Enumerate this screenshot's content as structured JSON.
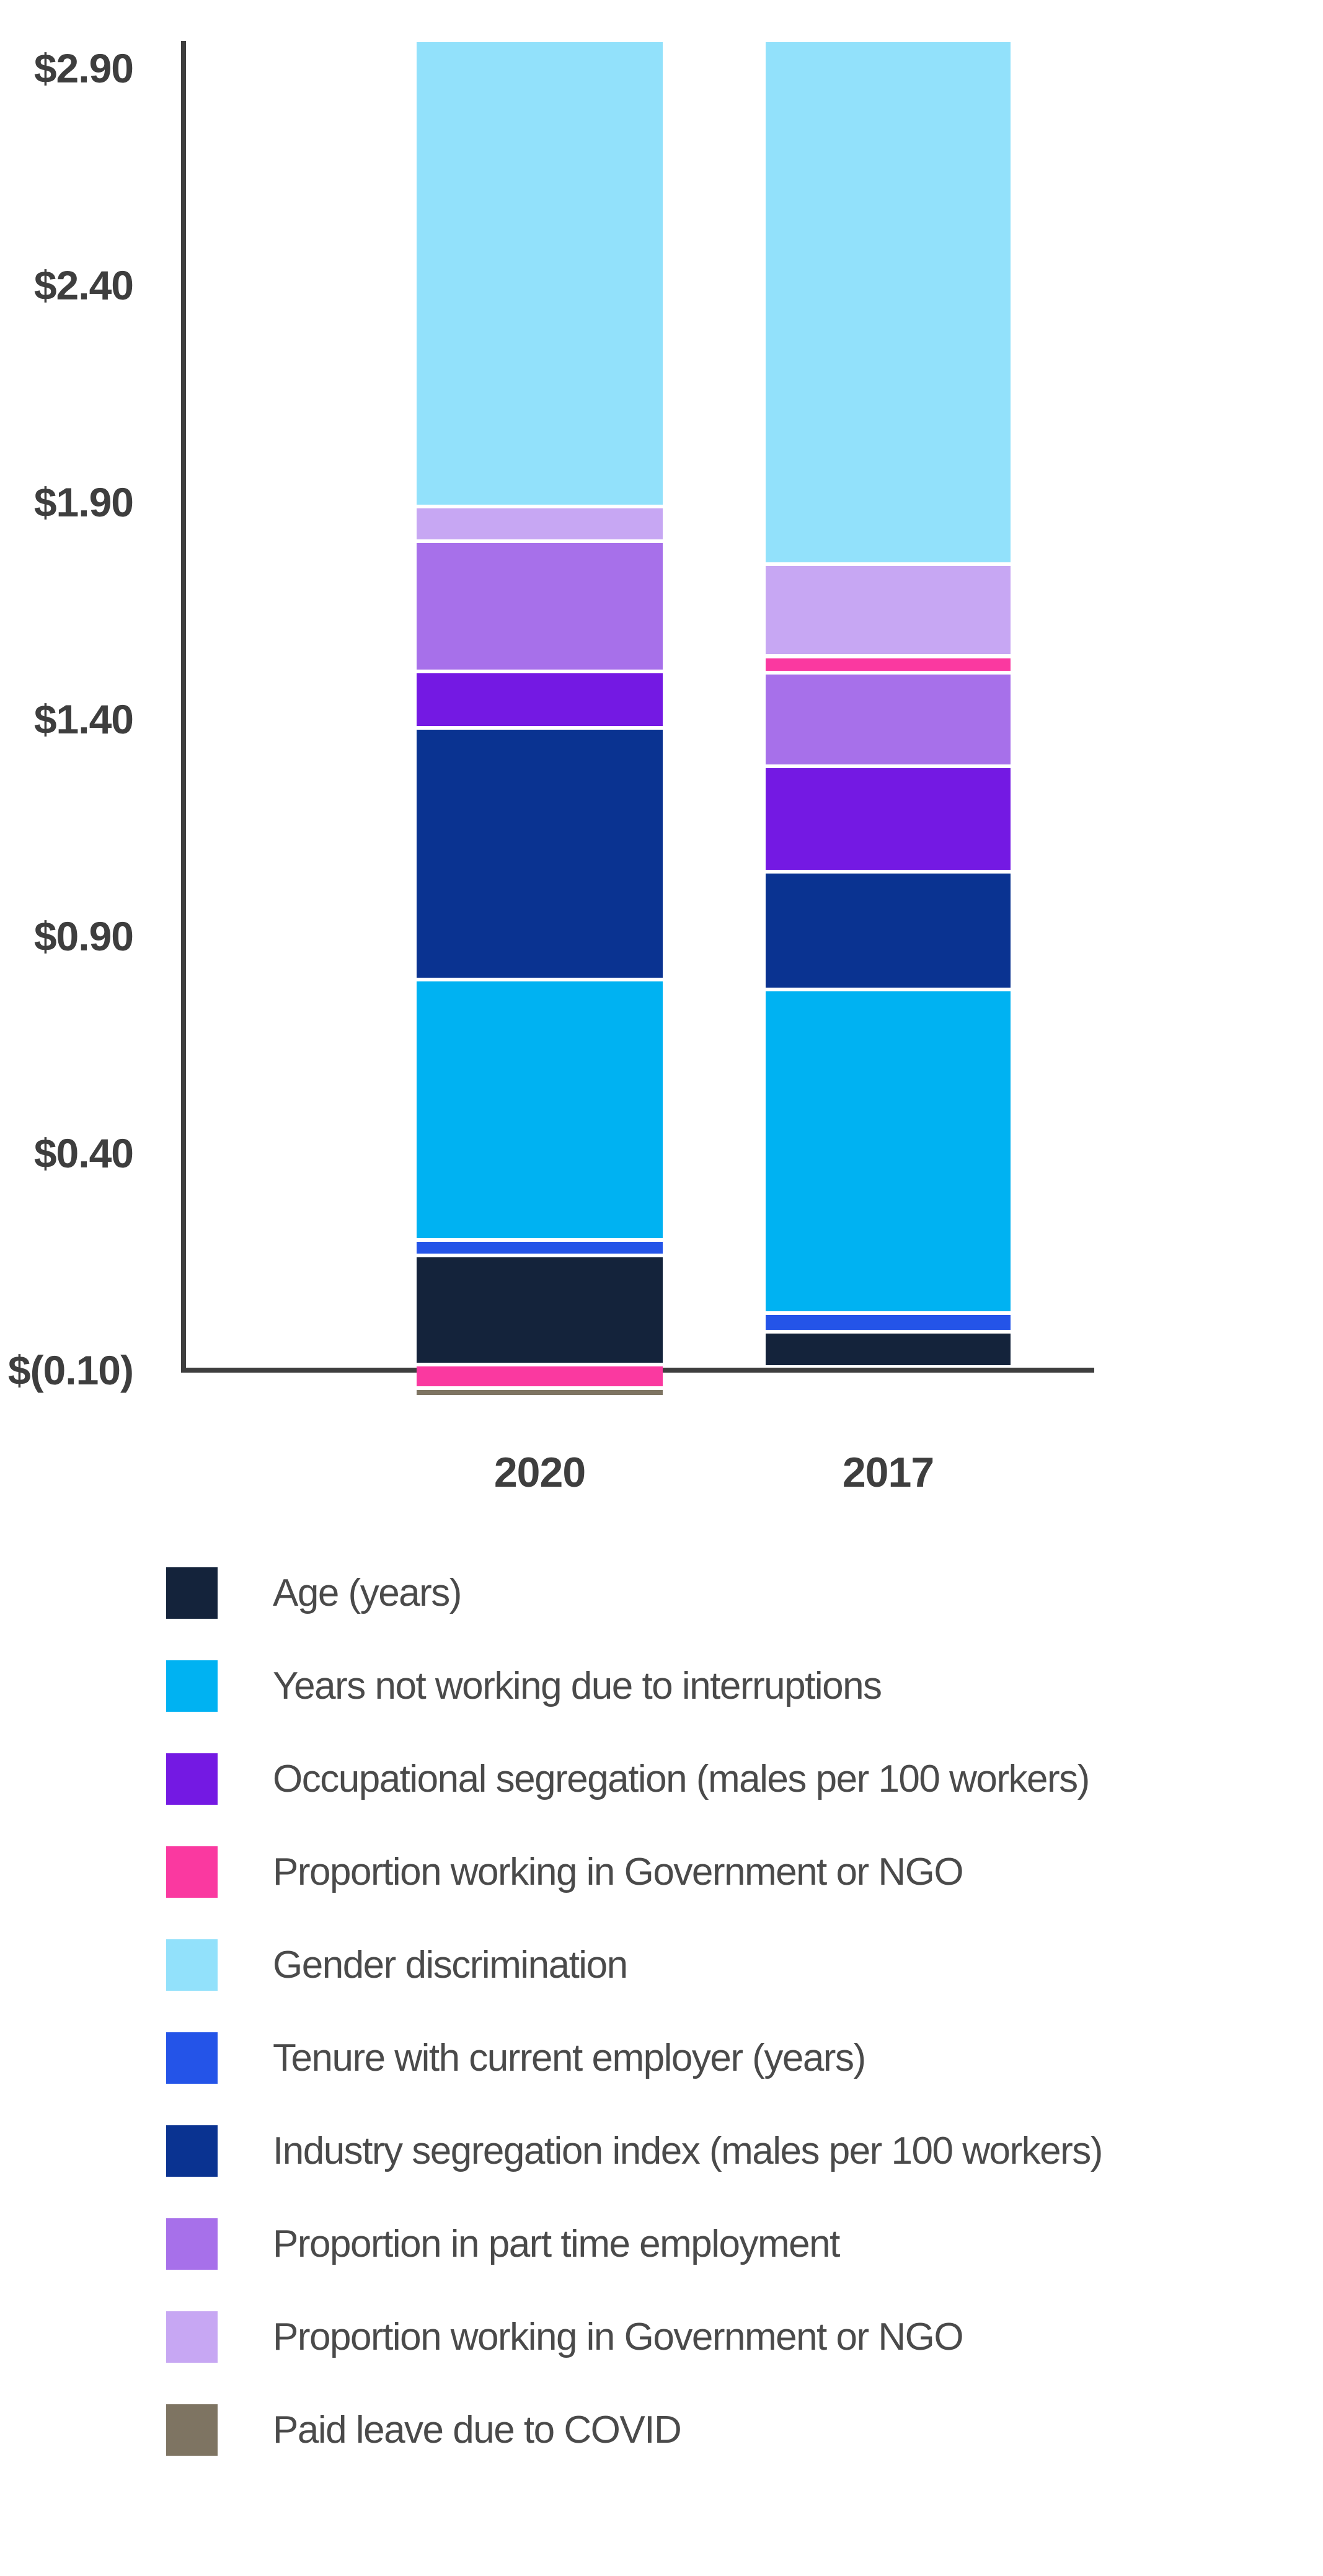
{
  "page": {
    "background": "#ffffff"
  },
  "chart_data": {
    "type": "bar",
    "stacked": true,
    "title": "",
    "xlabel": "",
    "ylabel": "",
    "grid": false,
    "legend_position": "bottom-left",
    "categories": [
      "2020",
      "2017"
    ],
    "y_ticks": [
      {
        "label": "$2.90",
        "value": 2.9
      },
      {
        "label": "$2.40",
        "value": 2.4
      },
      {
        "label": "$1.90",
        "value": 1.9
      },
      {
        "label": "$1.40",
        "value": 1.4
      },
      {
        "label": "$0.90",
        "value": 0.9
      },
      {
        "label": "$0.40",
        "value": 0.4
      },
      {
        "label": "$(0.10)",
        "value": -0.1
      }
    ],
    "axis_range": {
      "min": -0.1,
      "max": 2.9
    },
    "bar_totals": [
      2.96,
      2.96
    ],
    "series": [
      {
        "name": "Age (years)",
        "color": "#14233B",
        "values": [
          0.25,
          0.08
        ]
      },
      {
        "name": "Years not working due to interruptions",
        "color": "#00B2F2",
        "values": [
          0.6,
          0.75
        ]
      },
      {
        "name": "Occupational segregation (males per 100 workers)",
        "color": "#7419E3",
        "values": [
          0.13,
          0.24
        ]
      },
      {
        "name": "Proportion working in Government or NGO",
        "color": "#FA39A0",
        "values": [
          0.05,
          0.04
        ]
      },
      {
        "name": "Gender discrimination",
        "color": "#92E1FB",
        "values": [
          1.07,
          1.2
        ]
      },
      {
        "name": "Tenure with current employer (years)",
        "color": "#2454E8",
        "values": [
          0.04,
          0.04
        ]
      },
      {
        "name": "Industry segregation index (males per 100 workers)",
        "color": "#0A3391",
        "values": [
          0.58,
          0.27
        ]
      },
      {
        "name": "Proportion in part time employment",
        "color": "#A770EA",
        "values": [
          0.3,
          0.22
        ]
      },
      {
        "name": "Proportion working in Government or NGO",
        "color": "#C7A7F3",
        "values": [
          0.08,
          0.21
        ]
      },
      {
        "name": "Paid leave due to COVID",
        "color": "#7E7462",
        "values": [
          0.013,
          0
        ]
      }
    ],
    "bars": [
      {
        "category": "2020",
        "segments": [
          {
            "name": "Gender discrimination",
            "color": "#92E1FB",
            "from": 2.96,
            "to": 1.89
          },
          {
            "name": "Proportion working in Government or NGO",
            "color": "#C7A7F3",
            "from": 1.89,
            "to": 1.81
          },
          {
            "name": "Proportion in part time employment",
            "color": "#A770EA",
            "from": 1.81,
            "to": 1.51
          },
          {
            "name": "Occupational segregation (males per 100 workers)",
            "color": "#7419E3",
            "from": 1.51,
            "to": 1.38
          },
          {
            "name": "Industry segregation index (males per 100 workers)",
            "color": "#0A3391",
            "from": 1.38,
            "to": 0.8
          },
          {
            "name": "Years not working due to interruptions",
            "color": "#00B2F2",
            "from": 0.8,
            "to": 0.2
          },
          {
            "name": "Tenure with current employer (years)",
            "color": "#2454E8",
            "from": 0.2,
            "to": 0.165
          },
          {
            "name": "Age (years)",
            "color": "#14233B",
            "from": 0.165,
            "to": -0.087
          },
          {
            "name": "Proportion working in Government or NGO",
            "color": "#FA39A0",
            "from": -0.087,
            "to": -0.141
          },
          {
            "name": "Paid leave due to COVID",
            "color": "#7E7462",
            "from": -0.141,
            "to": -0.157
          }
        ]
      },
      {
        "category": "2017",
        "segments": [
          {
            "name": "Gender discrimination",
            "color": "#92E1FB",
            "from": 2.96,
            "to": 1.757
          },
          {
            "name": "Proportion working in Government or NGO",
            "color": "#C7A7F3",
            "from": 1.757,
            "to": 1.545
          },
          {
            "name": "Proportion working in Government or NGO",
            "color": "#FA39A0",
            "from": 1.545,
            "to": 1.507
          },
          {
            "name": "Proportion in part time employment",
            "color": "#A770EA",
            "from": 1.507,
            "to": 1.292
          },
          {
            "name": "Occupational segregation (males per 100 workers)",
            "color": "#7419E3",
            "from": 1.292,
            "to": 1.049
          },
          {
            "name": "Industry segregation index (males per 100 workers)",
            "color": "#0A3391",
            "from": 1.049,
            "to": 0.777
          },
          {
            "name": "Years not working due to interruptions",
            "color": "#00B2F2",
            "from": 0.777,
            "to": 0.031
          },
          {
            "name": "Tenure with current employer (years)",
            "color": "#2454E8",
            "from": 0.031,
            "to": -0.012
          },
          {
            "name": "Age (years)",
            "color": "#14233B",
            "from": -0.012,
            "to": -0.089
          }
        ]
      }
    ],
    "colors": {
      "axis": "#3e3e3e",
      "tick_label": "#3e3e3e",
      "legend_text": "#4a4a4a",
      "background": "#ffffff"
    }
  }
}
